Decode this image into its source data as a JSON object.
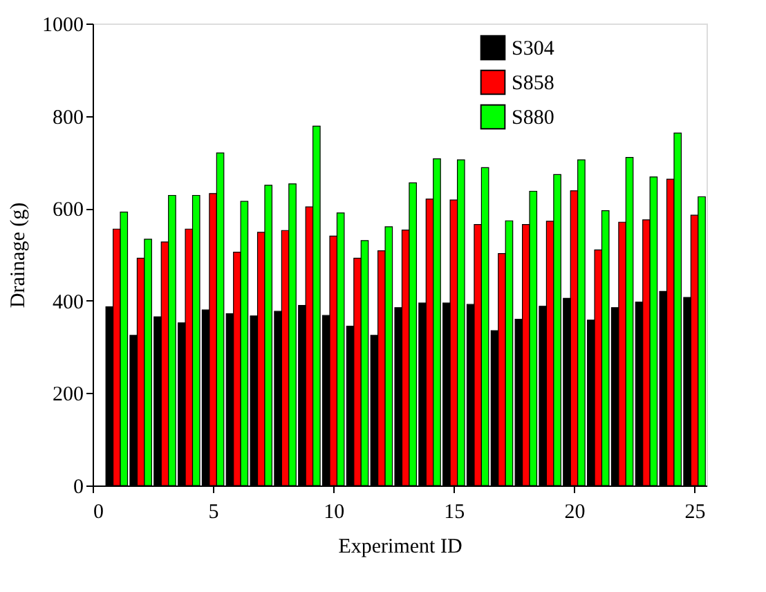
{
  "chart_data": {
    "type": "bar",
    "xlabel": "Experiment ID",
    "ylabel": "Drainage (g)",
    "x": [
      1,
      2,
      3,
      4,
      5,
      6,
      7,
      8,
      9,
      10,
      11,
      12,
      13,
      14,
      15,
      16,
      17,
      18,
      19,
      20,
      21,
      22,
      23,
      24,
      25
    ],
    "series": [
      {
        "name": "S304",
        "color": "#000000",
        "values": [
          387,
          325,
          365,
          352,
          380,
          372,
          367,
          377,
          390,
          368,
          345,
          325,
          385,
          395,
          395,
          392,
          335,
          360,
          388,
          405,
          358,
          385,
          397,
          420,
          407
        ]
      },
      {
        "name": "S858",
        "color": "#ff0000",
        "values": [
          555,
          492,
          527,
          555,
          632,
          505,
          548,
          552,
          603,
          540,
          492,
          508,
          553,
          620,
          618,
          565,
          502,
          565,
          572,
          638,
          510,
          570,
          575,
          663,
          585
        ]
      },
      {
        "name": "S880",
        "color": "#00ff00",
        "values": [
          592,
          533,
          628,
          628,
          720,
          615,
          650,
          653,
          778,
          590,
          530,
          560,
          655,
          707,
          705,
          688,
          573,
          637,
          673,
          705,
          595,
          710,
          668,
          763,
          625
        ]
      }
    ],
    "xlim": [
      0,
      25.5
    ],
    "xticks": [
      0,
      5,
      10,
      15,
      20,
      25
    ],
    "ylim": [
      0,
      1000
    ],
    "yticks": [
      0,
      200,
      400,
      600,
      800,
      1000
    ],
    "grid": false,
    "legend": "top right"
  }
}
